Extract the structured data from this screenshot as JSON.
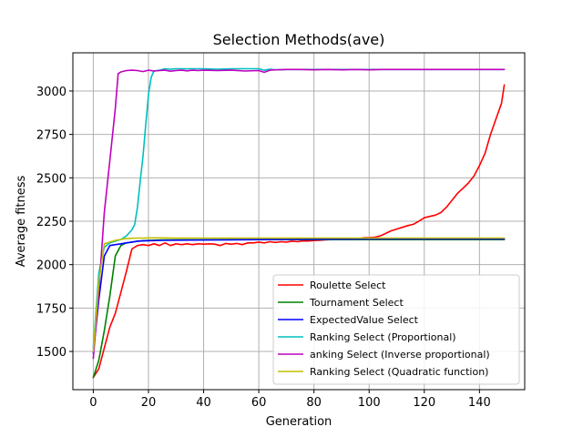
{
  "chart_data": {
    "type": "line",
    "title": "Selection Methods(ave)",
    "xlabel": "Generation",
    "ylabel": "Average fitness",
    "xlim": [
      -7.4,
      156.4
    ],
    "ylim": [
      1280,
      3220
    ],
    "xticks": [
      0,
      20,
      40,
      60,
      80,
      100,
      120,
      140
    ],
    "yticks": [
      1500,
      1750,
      2000,
      2250,
      2500,
      2750,
      3000
    ],
    "grid": true,
    "legend_position": "lower-right",
    "series": [
      {
        "name": "Roulette Select",
        "color": "#ff0000",
        "points": [
          [
            0,
            1350
          ],
          [
            2,
            1400
          ],
          [
            4,
            1520
          ],
          [
            6,
            1640
          ],
          [
            8,
            1720
          ],
          [
            10,
            1840
          ],
          [
            12,
            1960
          ],
          [
            14,
            2090
          ],
          [
            16,
            2110
          ],
          [
            18,
            2115
          ],
          [
            20,
            2110
          ],
          [
            22,
            2120
          ],
          [
            24,
            2110
          ],
          [
            26,
            2125
          ],
          [
            28,
            2110
          ],
          [
            30,
            2120
          ],
          [
            32,
            2115
          ],
          [
            34,
            2120
          ],
          [
            36,
            2115
          ],
          [
            38,
            2120
          ],
          [
            40,
            2118
          ],
          [
            42,
            2120
          ],
          [
            44,
            2118
          ],
          [
            46,
            2110
          ],
          [
            48,
            2122
          ],
          [
            50,
            2118
          ],
          [
            52,
            2122
          ],
          [
            54,
            2115
          ],
          [
            56,
            2125
          ],
          [
            58,
            2125
          ],
          [
            60,
            2130
          ],
          [
            62,
            2125
          ],
          [
            64,
            2132
          ],
          [
            66,
            2128
          ],
          [
            68,
            2132
          ],
          [
            70,
            2130
          ],
          [
            72,
            2135
          ],
          [
            74,
            2132
          ],
          [
            76,
            2137
          ],
          [
            78,
            2136
          ],
          [
            80,
            2139
          ],
          [
            82,
            2140
          ],
          [
            84,
            2143
          ],
          [
            86,
            2144
          ],
          [
            88,
            2145
          ],
          [
            90,
            2145
          ],
          [
            92,
            2146
          ],
          [
            94,
            2147
          ],
          [
            96,
            2148
          ],
          [
            98,
            2155
          ],
          [
            100,
            2155
          ],
          [
            102,
            2158
          ],
          [
            104,
            2165
          ],
          [
            106,
            2180
          ],
          [
            108,
            2195
          ],
          [
            110,
            2205
          ],
          [
            112,
            2215
          ],
          [
            114,
            2225
          ],
          [
            116,
            2232
          ],
          [
            118,
            2250
          ],
          [
            120,
            2270
          ],
          [
            122,
            2278
          ],
          [
            124,
            2285
          ],
          [
            126,
            2300
          ],
          [
            128,
            2330
          ],
          [
            130,
            2370
          ],
          [
            132,
            2410
          ],
          [
            134,
            2440
          ],
          [
            136,
            2470
          ],
          [
            138,
            2510
          ],
          [
            140,
            2570
          ],
          [
            142,
            2640
          ],
          [
            144,
            2750
          ],
          [
            146,
            2840
          ],
          [
            148,
            2930
          ],
          [
            149,
            3035
          ]
        ]
      },
      {
        "name": "Tournament Select",
        "color": "#008000",
        "points": [
          [
            0,
            1350
          ],
          [
            2,
            1450
          ],
          [
            4,
            1620
          ],
          [
            6,
            1820
          ],
          [
            8,
            2050
          ],
          [
            10,
            2110
          ],
          [
            12,
            2125
          ],
          [
            14,
            2130
          ],
          [
            16,
            2135
          ],
          [
            18,
            2138
          ],
          [
            20,
            2140
          ],
          [
            25,
            2142
          ],
          [
            30,
            2143
          ],
          [
            40,
            2143
          ],
          [
            50,
            2144
          ],
          [
            60,
            2144
          ],
          [
            70,
            2144
          ],
          [
            80,
            2144
          ],
          [
            90,
            2144
          ],
          [
            100,
            2144
          ],
          [
            110,
            2144
          ],
          [
            120,
            2144
          ],
          [
            130,
            2144
          ],
          [
            140,
            2144
          ],
          [
            149,
            2144
          ]
        ]
      },
      {
        "name": "ExpectedValue Select",
        "color": "#0000ff",
        "points": [
          [
            0,
            1490
          ],
          [
            2,
            1800
          ],
          [
            4,
            2050
          ],
          [
            6,
            2110
          ],
          [
            8,
            2115
          ],
          [
            10,
            2120
          ],
          [
            12,
            2125
          ],
          [
            14,
            2130
          ],
          [
            16,
            2135
          ],
          [
            18,
            2137
          ],
          [
            20,
            2138
          ],
          [
            25,
            2140
          ],
          [
            30,
            2141
          ],
          [
            40,
            2142
          ],
          [
            50,
            2143
          ],
          [
            60,
            2144
          ],
          [
            70,
            2145
          ],
          [
            80,
            2146
          ],
          [
            90,
            2147
          ],
          [
            100,
            2148
          ],
          [
            110,
            2148
          ],
          [
            120,
            2148
          ],
          [
            130,
            2148
          ],
          [
            140,
            2148
          ],
          [
            149,
            2148
          ]
        ]
      },
      {
        "name": "Ranking Select (Proportional)",
        "color": "#00bfbf",
        "points": [
          [
            0,
            1520
          ],
          [
            2,
            1950
          ],
          [
            4,
            2100
          ],
          [
            6,
            2125
          ],
          [
            8,
            2135
          ],
          [
            10,
            2145
          ],
          [
            12,
            2165
          ],
          [
            14,
            2200
          ],
          [
            15,
            2230
          ],
          [
            16,
            2330
          ],
          [
            17,
            2480
          ],
          [
            18,
            2620
          ],
          [
            19,
            2800
          ],
          [
            20,
            2980
          ],
          [
            21,
            3080
          ],
          [
            22,
            3115
          ],
          [
            24,
            3120
          ],
          [
            26,
            3128
          ],
          [
            28,
            3125
          ],
          [
            30,
            3128
          ],
          [
            35,
            3128
          ],
          [
            40,
            3128
          ],
          [
            45,
            3125
          ],
          [
            50,
            3128
          ],
          [
            55,
            3128
          ],
          [
            60,
            3128
          ],
          [
            62,
            3120
          ],
          [
            64,
            3125
          ],
          [
            66,
            3122
          ],
          [
            68,
            3122
          ],
          [
            70,
            3124
          ],
          [
            75,
            3124
          ],
          [
            80,
            3124
          ],
          [
            90,
            3124
          ],
          [
            100,
            3124
          ],
          [
            110,
            3124
          ],
          [
            120,
            3124
          ],
          [
            130,
            3124
          ],
          [
            140,
            3124
          ],
          [
            149,
            3124
          ]
        ]
      },
      {
        "name": "anking Select (Inverse proportional)",
        "color": "#bf00bf",
        "points": [
          [
            0,
            1460
          ],
          [
            2,
            1850
          ],
          [
            4,
            2300
          ],
          [
            6,
            2600
          ],
          [
            8,
            2900
          ],
          [
            9,
            3100
          ],
          [
            10,
            3110
          ],
          [
            12,
            3118
          ],
          [
            14,
            3120
          ],
          [
            16,
            3118
          ],
          [
            18,
            3112
          ],
          [
            20,
            3120
          ],
          [
            22,
            3115
          ],
          [
            24,
            3118
          ],
          [
            26,
            3120
          ],
          [
            28,
            3114
          ],
          [
            30,
            3118
          ],
          [
            32,
            3120
          ],
          [
            34,
            3116
          ],
          [
            36,
            3120
          ],
          [
            38,
            3118
          ],
          [
            40,
            3120
          ],
          [
            45,
            3118
          ],
          [
            50,
            3120
          ],
          [
            55,
            3115
          ],
          [
            60,
            3118
          ],
          [
            62,
            3108
          ],
          [
            64,
            3120
          ],
          [
            66,
            3122
          ],
          [
            70,
            3124
          ],
          [
            75,
            3124
          ],
          [
            80,
            3122
          ],
          [
            85,
            3124
          ],
          [
            90,
            3122
          ],
          [
            95,
            3124
          ],
          [
            100,
            3122
          ],
          [
            105,
            3124
          ],
          [
            110,
            3124
          ],
          [
            115,
            3124
          ],
          [
            120,
            3124
          ],
          [
            125,
            3124
          ],
          [
            130,
            3124
          ],
          [
            135,
            3124
          ],
          [
            140,
            3124
          ],
          [
            145,
            3124
          ],
          [
            149,
            3124
          ]
        ]
      },
      {
        "name": "Ranking Select (Quadratic function)",
        "color": "#bfbf00",
        "points": [
          [
            0,
            1500
          ],
          [
            2,
            1900
          ],
          [
            4,
            2120
          ],
          [
            6,
            2130
          ],
          [
            8,
            2140
          ],
          [
            10,
            2145
          ],
          [
            12,
            2150
          ],
          [
            14,
            2152
          ],
          [
            16,
            2153
          ],
          [
            18,
            2153
          ],
          [
            20,
            2154
          ],
          [
            25,
            2154
          ],
          [
            30,
            2153
          ],
          [
            40,
            2153
          ],
          [
            50,
            2153
          ],
          [
            60,
            2153
          ],
          [
            70,
            2153
          ],
          [
            80,
            2153
          ],
          [
            90,
            2153
          ],
          [
            100,
            2153
          ],
          [
            110,
            2153
          ],
          [
            120,
            2153
          ],
          [
            130,
            2153
          ],
          [
            140,
            2153
          ],
          [
            149,
            2153
          ]
        ]
      }
    ]
  }
}
